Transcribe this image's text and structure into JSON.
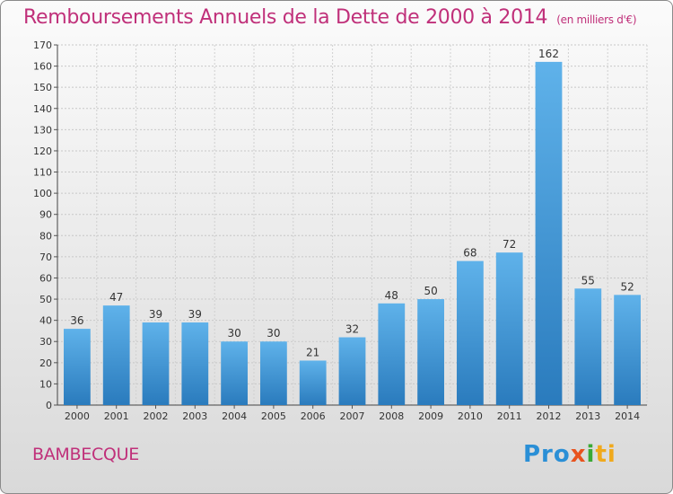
{
  "header": {
    "title": "Remboursements Annuels de la Dette de 2000 à 2014",
    "unit": "(en milliers d'€)"
  },
  "footer": {
    "commune": "BAMBECQUE",
    "logo_text": "Proxiti",
    "logo_parts": [
      "Pro",
      "x",
      "i",
      "ti"
    ]
  },
  "chart_data": {
    "type": "bar",
    "title": "Remboursements Annuels de la Dette de 2000 à 2014",
    "subtitle": "(en milliers d'€)",
    "categories": [
      "2000",
      "2001",
      "2002",
      "2003",
      "2004",
      "2005",
      "2006",
      "2007",
      "2008",
      "2009",
      "2010",
      "2011",
      "2012",
      "2013",
      "2014"
    ],
    "values": [
      36,
      47,
      39,
      39,
      30,
      30,
      21,
      32,
      48,
      50,
      68,
      72,
      162,
      55,
      52
    ],
    "xlabel": "",
    "ylabel": "",
    "ylim": [
      0,
      170
    ],
    "yticks": [
      0,
      10,
      20,
      30,
      40,
      50,
      60,
      70,
      80,
      90,
      100,
      110,
      120,
      130,
      140,
      150,
      160,
      170
    ],
    "grid": true,
    "data_labels": true,
    "bar_color_light": "#5fb2ea",
    "bar_color_dark": "#2a7bbd",
    "title_color": "#c0307a"
  }
}
